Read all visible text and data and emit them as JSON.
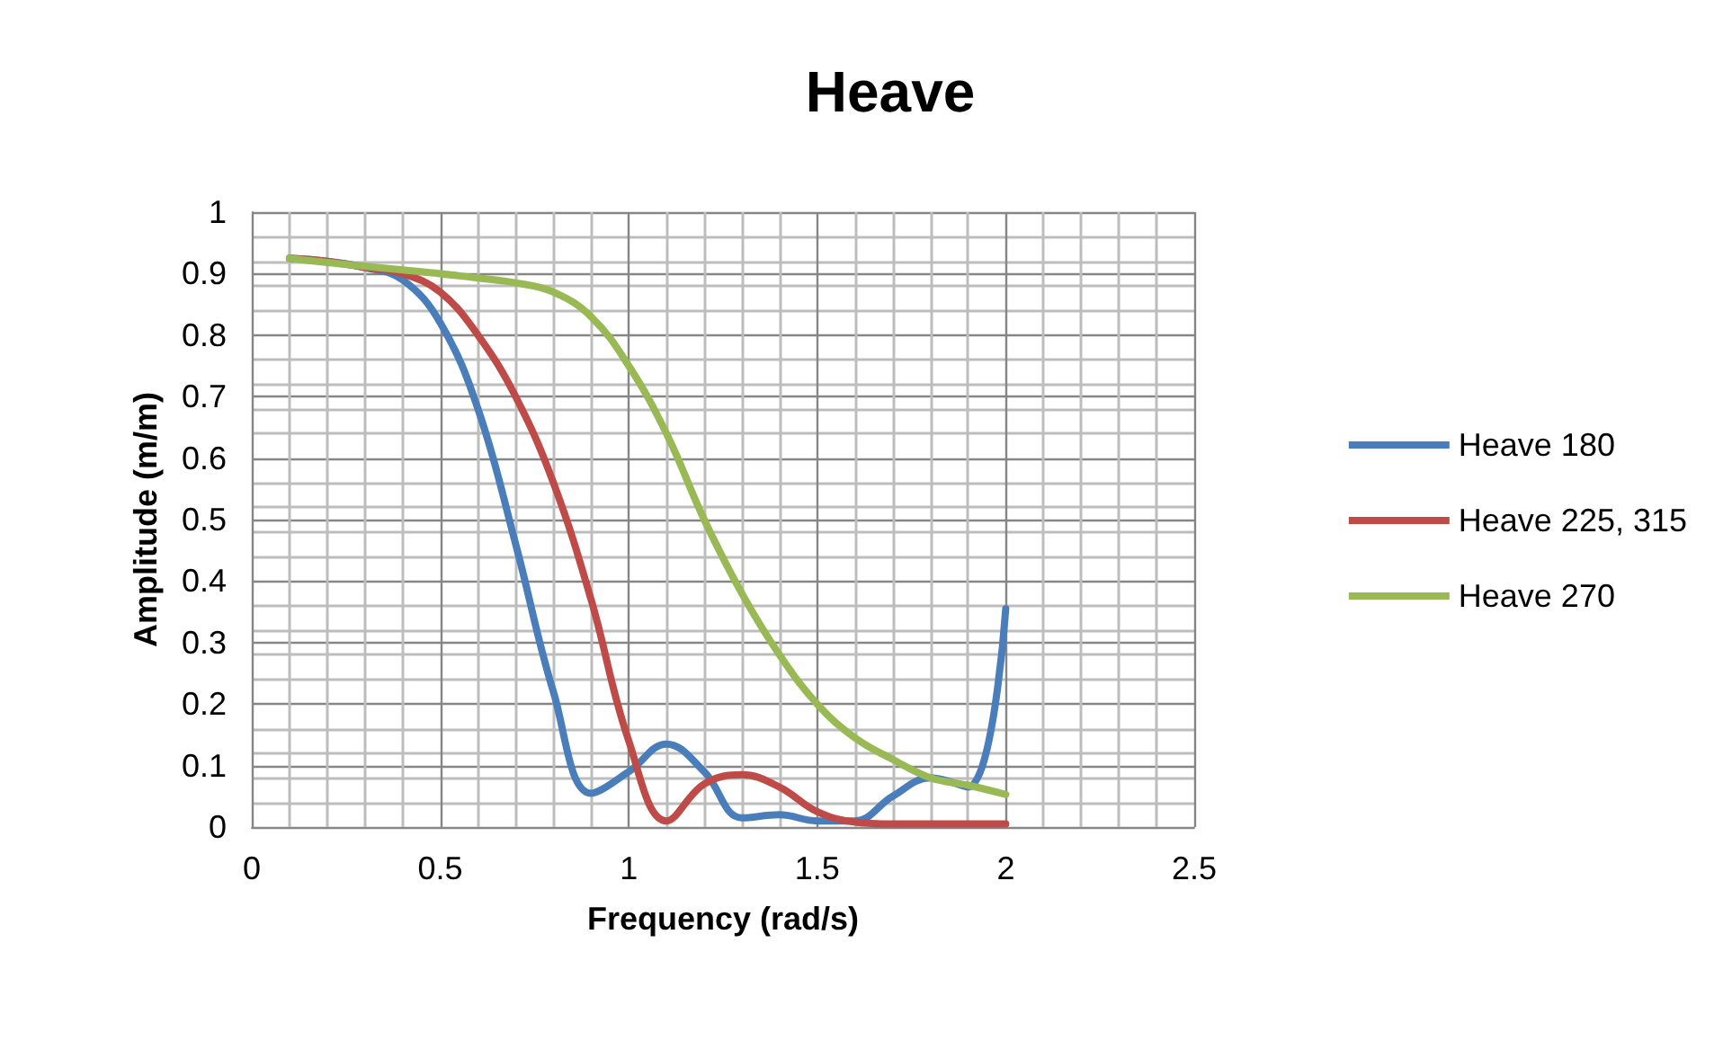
{
  "chart_data": {
    "type": "line",
    "title": "Heave",
    "xlabel": "Frequency (rad/s)",
    "ylabel": "Amplitude (m/m)",
    "x": [
      0.1,
      0.2,
      0.3,
      0.4,
      0.5,
      0.6,
      0.7,
      0.8,
      0.9,
      1.0,
      1.1,
      1.2,
      1.3,
      1.4,
      1.5,
      1.6,
      1.7,
      1.8,
      1.9,
      2.0
    ],
    "series": [
      {
        "name": "Heave 180",
        "color": "#4a7ebb",
        "values": [
          0.925,
          0.92,
          0.91,
          0.89,
          0.82,
          0.68,
          0.46,
          0.22,
          0.055,
          0.09,
          0.135,
          0.09,
          0.015,
          0.02,
          0.01,
          0.01,
          0.05,
          0.08,
          0.065,
          0.355
        ]
      },
      {
        "name": "Heave 225, 315",
        "color": "#be4b48",
        "values": [
          0.925,
          0.92,
          0.91,
          0.9,
          0.87,
          0.8,
          0.7,
          0.56,
          0.37,
          0.14,
          0.01,
          0.07,
          0.085,
          0.065,
          0.025,
          0.008,
          0.005,
          0.005,
          0.005,
          0.005
        ]
      },
      {
        "name": "Heave 270",
        "color": "#98b954",
        "values": [
          0.925,
          0.918,
          0.912,
          0.906,
          0.9,
          0.893,
          0.885,
          0.87,
          0.83,
          0.75,
          0.64,
          0.5,
          0.38,
          0.28,
          0.2,
          0.145,
          0.11,
          0.08,
          0.068,
          0.053
        ]
      }
    ],
    "xlim": [
      0,
      2.5
    ],
    "xticks": [
      0,
      0.5,
      1,
      1.5,
      2,
      2.5
    ],
    "ylim": [
      0,
      1
    ],
    "yticks": [
      0,
      0.1,
      0.2,
      0.3,
      0.4,
      0.5,
      0.6,
      0.7,
      0.8,
      0.9,
      1
    ],
    "grid": true,
    "legend": "right",
    "marker": "none",
    "line_style": "solid"
  }
}
